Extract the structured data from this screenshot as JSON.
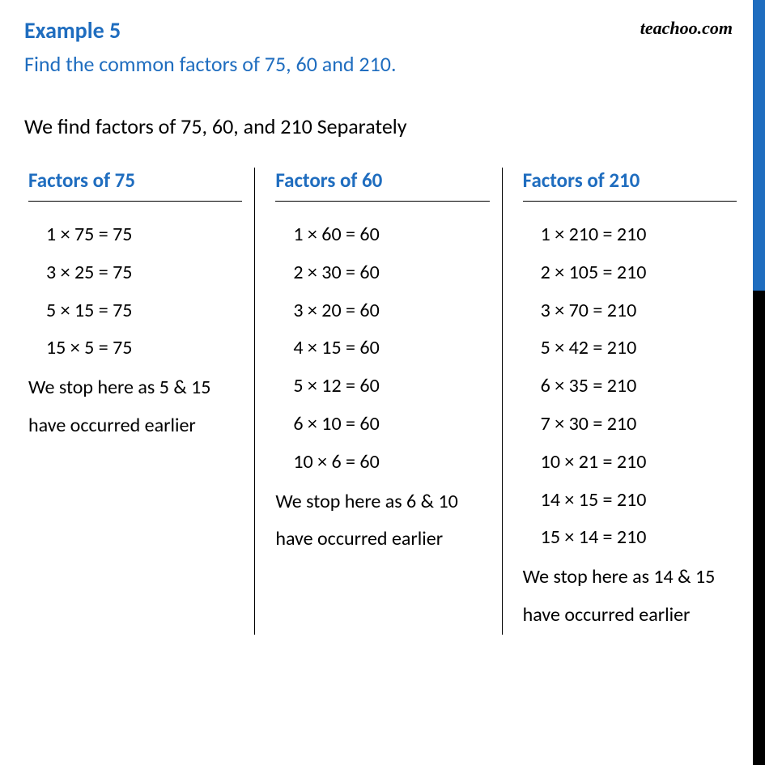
{
  "watermark": "teachoo.com",
  "header": {
    "example_label": "Example 5",
    "question": "Find the common factors of 75, 60 and 210."
  },
  "intro": "We find factors of 75, 60, and 210 Separately",
  "columns": [
    {
      "title": "Factors of 75",
      "rows": [
        "1 × 75 = 75",
        "3 × 25 = 75",
        "5 × 15 = 75",
        "15 × 5 = 75"
      ],
      "note": "We stop here as 5 & 15 have occurred earlier"
    },
    {
      "title": "Factors of 60",
      "rows": [
        "1 × 60 = 60",
        "2 × 30 = 60",
        "3 × 20  = 60",
        "4 × 15 = 60",
        "5 × 12 = 60",
        "6 × 10 = 60",
        "10 × 6 = 60"
      ],
      "note": "We stop here as 6 & 10 have occurred earlier"
    },
    {
      "title": "Factors of 210",
      "rows": [
        "1 × 210 = 210",
        "2 × 105 = 210",
        "3 × 70 = 210",
        "5 × 42 = 210",
        "6 × 35 = 210",
        "7 × 30 = 210",
        "10 × 21 = 210",
        "14 × 15 = 210",
        "15 × 14 = 210"
      ],
      "note": "We stop here as 14 & 15 have occurred earlier"
    }
  ],
  "colors": {
    "accent": "#1f6dbf",
    "text": "#000000",
    "background": "#ffffff"
  },
  "typography": {
    "title_fontsize": 28,
    "question_fontsize": 26,
    "body_fontsize": 24,
    "header_fontsize": 25,
    "font_family": "Calibri"
  }
}
